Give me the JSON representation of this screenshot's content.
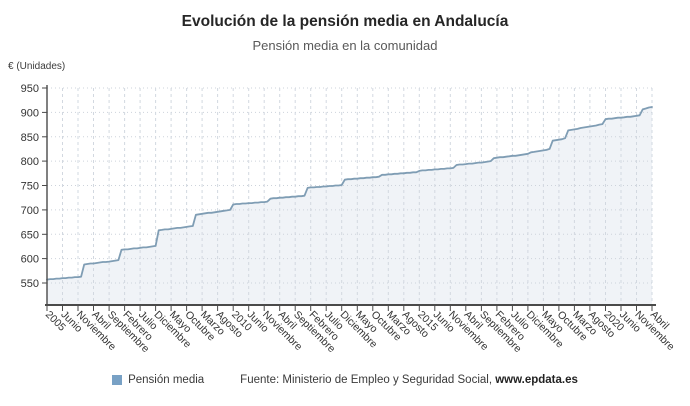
{
  "header": {
    "title": "Evolución de la pensión media en Andalucía",
    "subtitle": "Pensión media en la comunidad"
  },
  "axis_unit_label": "€ (Unidades)",
  "legend": {
    "label": "Pensión media",
    "swatch_color": "#78a1c5"
  },
  "source": {
    "prefix": "Fuente: Ministerio de Empleo y Seguridad Social, ",
    "site": "www.epdata.es"
  },
  "colors": {
    "line": "#7f9db4",
    "area": "rgba(138,166,190,0.13)",
    "grid_h": "#cdd3db",
    "grid_v": "#d2d8e0",
    "axis": "#4a4a4a",
    "tick_text": "#333333"
  },
  "chart_data": {
    "type": "area",
    "title": "Evolución de la pensión media en Andalucía",
    "subtitle": "Pensión media en la comunidad",
    "ylabel": "€ (Unidades)",
    "series_name": "Pensión media",
    "frequency": "monthly",
    "period_start": "Enero 2005",
    "period_end": "Abril 2021",
    "ylim": [
      505,
      955
    ],
    "yticks": [
      550,
      600,
      650,
      700,
      750,
      800,
      850,
      900,
      950
    ],
    "grid": true,
    "legend_position": "bottom",
    "tick_every": 5,
    "tick_labels": [
      "2005",
      "Junio",
      "Noviembre",
      "Abril",
      "Septiembre",
      "Febrero",
      "Julio",
      "Diciembre",
      "Mayo",
      "Octubre",
      "Marzo",
      "Agosto",
      "2010",
      "Junio",
      "Noviembre",
      "Abril",
      "Septiembre",
      "Febrero",
      "Julio",
      "Diciembre",
      "Mayo",
      "Octubre",
      "Marzo",
      "Agosto",
      "2015",
      "Junio",
      "Noviembre",
      "Abril",
      "Septiembre",
      "Febrero",
      "Julio",
      "Diciembre",
      "Mayo",
      "Octubre",
      "Marzo",
      "Agosto",
      "2020",
      "Junio",
      "Noviembre",
      "Abril"
    ],
    "values": [
      557,
      558,
      558,
      559,
      559,
      560,
      560,
      561,
      561,
      562,
      562,
      563,
      588,
      589,
      590,
      590,
      591,
      592,
      593,
      593,
      594,
      595,
      596,
      597,
      618,
      619,
      619,
      620,
      621,
      621,
      622,
      623,
      623,
      624,
      625,
      626,
      658,
      659,
      660,
      660,
      661,
      662,
      663,
      663,
      664,
      665,
      666,
      667,
      690,
      691,
      692,
      693,
      694,
      694,
      695,
      696,
      697,
      698,
      699,
      700,
      711,
      712,
      712,
      713,
      713,
      714,
      714,
      715,
      715,
      716,
      716,
      717,
      723,
      724,
      724,
      725,
      725,
      726,
      726,
      727,
      727,
      728,
      728,
      729,
      745,
      746,
      746,
      747,
      747,
      748,
      748,
      749,
      749,
      750,
      750,
      751,
      762,
      763,
      763,
      764,
      764,
      765,
      765,
      766,
      766,
      767,
      767,
      768,
      772,
      772,
      773,
      773,
      774,
      774,
      775,
      775,
      776,
      776,
      777,
      777,
      780,
      781,
      781,
      782,
      782,
      783,
      783,
      784,
      784,
      785,
      785,
      786,
      792,
      793,
      793,
      794,
      795,
      795,
      796,
      797,
      797,
      798,
      799,
      800,
      806,
      807,
      808,
      808,
      809,
      810,
      811,
      811,
      812,
      813,
      814,
      815,
      818,
      819,
      820,
      821,
      822,
      823,
      825,
      842,
      843,
      844,
      845,
      847,
      863,
      864,
      865,
      866,
      868,
      869,
      870,
      871,
      872,
      873,
      875,
      876,
      886,
      887,
      887,
      888,
      889,
      889,
      890,
      891,
      891,
      892,
      893,
      894,
      906,
      908,
      910,
      911
    ]
  }
}
